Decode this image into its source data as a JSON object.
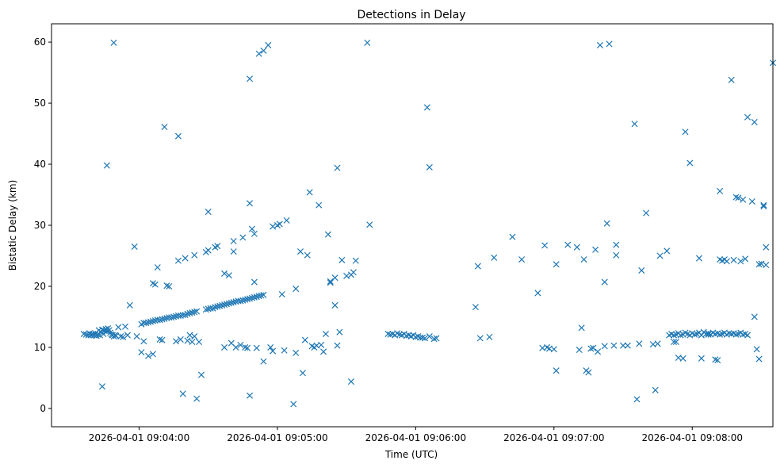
{
  "chart_data": {
    "type": "scatter",
    "title": "Detections in Delay",
    "xlabel": "Time (UTC)",
    "ylabel": "Bistatic Delay (km)",
    "marker": "x",
    "color": "#1f77b4",
    "x_unit": "seconds since 2026-04-01 09:03:00",
    "xlim": [
      22,
      335
    ],
    "ylim": [
      -3,
      63
    ],
    "xticks": [
      {
        "value": 60,
        "label": "2026-04-01 09:04:00"
      },
      {
        "value": 120,
        "label": "2026-04-01 09:05:00"
      },
      {
        "value": 180,
        "label": "2026-04-01 09:06:00"
      },
      {
        "value": 240,
        "label": "2026-04-01 09:07:00"
      },
      {
        "value": 300,
        "label": "2026-04-01 09:08:00"
      }
    ],
    "yticks": [
      0,
      10,
      20,
      30,
      40,
      50,
      60
    ],
    "grid": false,
    "series": [
      {
        "name": "detections",
        "points": [
          [
            36,
            12.2
          ],
          [
            37,
            12.1
          ],
          [
            38,
            12.0
          ],
          [
            38.5,
            12.3
          ],
          [
            39,
            12.0
          ],
          [
            39.5,
            12.1
          ],
          [
            40,
            12.2
          ],
          [
            40.5,
            12.0
          ],
          [
            41,
            12.3
          ],
          [
            41.5,
            11.9
          ],
          [
            42,
            12.1
          ],
          [
            42.5,
            12.8
          ],
          [
            43,
            12.0
          ],
          [
            43.5,
            12.5
          ],
          [
            44,
            12.9
          ],
          [
            44.5,
            12.2
          ],
          [
            45,
            12.7
          ],
          [
            45.5,
            13.0
          ],
          [
            46,
            12.6
          ],
          [
            46.5,
            13.1
          ],
          [
            47,
            12.8
          ],
          [
            47.5,
            12.4
          ],
          [
            48,
            12.1
          ],
          [
            48.5,
            12.0
          ],
          [
            49,
            11.8
          ],
          [
            49.5,
            12.0
          ],
          [
            50,
            11.9
          ],
          [
            51,
            13.3
          ],
          [
            52,
            11.8
          ],
          [
            53,
            11.7
          ],
          [
            54,
            13.4
          ],
          [
            55,
            12.0
          ],
          [
            61,
            13.8
          ],
          [
            62,
            14.0
          ],
          [
            63,
            14.0
          ],
          [
            64,
            14.1
          ],
          [
            65,
            14.2
          ],
          [
            66,
            14.3
          ],
          [
            67,
            14.4
          ],
          [
            68,
            14.5
          ],
          [
            69,
            14.5
          ],
          [
            70,
            14.6
          ],
          [
            71,
            14.7
          ],
          [
            72,
            14.8
          ],
          [
            73,
            14.9
          ],
          [
            74,
            14.9
          ],
          [
            75,
            15.0
          ],
          [
            76,
            15.1
          ],
          [
            77,
            15.2
          ],
          [
            78,
            15.2
          ],
          [
            79,
            15.3
          ],
          [
            80,
            15.3
          ],
          [
            81,
            15.5
          ],
          [
            82,
            15.6
          ],
          [
            83,
            15.7
          ],
          [
            84,
            15.8
          ],
          [
            85,
            15.9
          ],
          [
            89,
            16.2
          ],
          [
            90,
            16.3
          ],
          [
            91,
            16.4
          ],
          [
            92,
            16.4
          ],
          [
            93,
            16.6
          ],
          [
            94,
            16.7
          ],
          [
            95,
            16.8
          ],
          [
            96,
            16.9
          ],
          [
            97,
            17.0
          ],
          [
            98,
            17.1
          ],
          [
            99,
            17.2
          ],
          [
            100,
            17.3
          ],
          [
            101,
            17.4
          ],
          [
            102,
            17.5
          ],
          [
            103,
            17.6
          ],
          [
            104,
            17.6
          ],
          [
            105,
            17.7
          ],
          [
            106,
            17.8
          ],
          [
            107,
            17.9
          ],
          [
            108,
            18.0
          ],
          [
            109,
            18.1
          ],
          [
            110,
            18.2
          ],
          [
            111,
            18.3
          ],
          [
            112,
            18.4
          ],
          [
            113,
            18.5
          ],
          [
            114,
            18.6
          ],
          [
            168,
            12.2
          ],
          [
            169,
            12.1
          ],
          [
            170,
            12.2
          ],
          [
            171,
            12.0
          ],
          [
            172,
            12.3
          ],
          [
            173,
            12.1
          ],
          [
            174,
            12.0
          ],
          [
            175,
            12.2
          ],
          [
            176,
            11.9
          ],
          [
            177,
            12.0
          ],
          [
            178,
            11.8
          ],
          [
            179,
            12.0
          ],
          [
            180,
            11.7
          ],
          [
            181,
            11.8
          ],
          [
            182,
            11.6
          ],
          [
            183,
            11.6
          ],
          [
            184,
            11.5
          ],
          [
            186,
            11.8
          ],
          [
            188,
            11.4
          ],
          [
            189,
            11.5
          ],
          [
            290,
            12.0
          ],
          [
            291,
            12.2
          ],
          [
            292,
            12.0
          ],
          [
            293,
            12.1
          ],
          [
            294,
            12.3
          ],
          [
            295,
            12.0
          ],
          [
            296,
            12.1
          ],
          [
            297,
            12.4
          ],
          [
            298,
            12.2
          ],
          [
            299,
            12.0
          ],
          [
            300,
            12.3
          ],
          [
            301,
            12.1
          ],
          [
            302,
            12.2
          ],
          [
            303,
            12.4
          ],
          [
            304,
            12.0
          ],
          [
            305,
            12.5
          ],
          [
            306,
            12.2
          ],
          [
            307,
            12.3
          ],
          [
            308,
            12.1
          ],
          [
            309,
            12.4
          ],
          [
            310,
            12.2
          ],
          [
            311,
            12.3
          ],
          [
            312,
            12.1
          ],
          [
            313,
            12.2
          ],
          [
            314,
            12.4
          ],
          [
            315,
            12.1
          ],
          [
            316,
            12.3
          ],
          [
            317,
            12.2
          ],
          [
            318,
            12.3
          ],
          [
            319,
            12.1
          ],
          [
            320,
            12.2
          ],
          [
            321,
            12.4
          ],
          [
            322,
            12.1
          ],
          [
            323,
            12.2
          ],
          [
            324,
            12.0
          ],
          [
            46,
            39.8
          ],
          [
            49,
            59.9
          ],
          [
            44,
            3.6
          ],
          [
            56,
            16.9
          ],
          [
            58,
            26.5
          ],
          [
            59,
            11.8
          ],
          [
            61,
            9.2
          ],
          [
            62,
            11.0
          ],
          [
            64,
            8.6
          ],
          [
            66,
            8.9
          ],
          [
            66,
            20.5
          ],
          [
            67,
            20.3
          ],
          [
            68,
            23.1
          ],
          [
            69,
            11.3
          ],
          [
            70,
            11.2
          ],
          [
            71,
            46.1
          ],
          [
            72,
            20.1
          ],
          [
            73,
            20.0
          ],
          [
            76,
            11.0
          ],
          [
            77,
            44.6
          ],
          [
            77,
            24.2
          ],
          [
            78,
            11.3
          ],
          [
            79,
            2.4
          ],
          [
            80,
            24.6
          ],
          [
            81,
            11.1
          ],
          [
            82,
            12.0
          ],
          [
            83,
            10.9
          ],
          [
            84,
            11.8
          ],
          [
            84,
            25.1
          ],
          [
            85,
            1.6
          ],
          [
            86,
            10.9
          ],
          [
            87,
            5.5
          ],
          [
            89,
            25.6
          ],
          [
            90,
            25.9
          ],
          [
            90,
            32.2
          ],
          [
            93,
            26.4
          ],
          [
            94,
            26.6
          ],
          [
            97,
            10.0
          ],
          [
            97,
            22.1
          ],
          [
            99,
            21.8
          ],
          [
            100,
            10.7
          ],
          [
            101,
            27.4
          ],
          [
            101,
            25.7
          ],
          [
            102,
            10.0
          ],
          [
            104,
            10.4
          ],
          [
            105,
            28.0
          ],
          [
            106,
            10.0
          ],
          [
            107,
            9.9
          ],
          [
            108,
            33.6
          ],
          [
            108,
            54.0
          ],
          [
            108,
            2.1
          ],
          [
            109,
            29.4
          ],
          [
            110,
            28.6
          ],
          [
            110,
            20.7
          ],
          [
            111,
            9.9
          ],
          [
            112,
            58.1
          ],
          [
            114,
            58.6
          ],
          [
            114,
            7.7
          ],
          [
            116,
            59.5
          ],
          [
            117,
            10.0
          ],
          [
            118,
            29.8
          ],
          [
            118,
            9.4
          ],
          [
            120,
            30.0
          ],
          [
            121,
            30.2
          ],
          [
            122,
            18.7
          ],
          [
            123,
            9.5
          ],
          [
            124,
            30.8
          ],
          [
            127,
            0.7
          ],
          [
            128,
            19.6
          ],
          [
            128,
            9.1
          ],
          [
            130,
            25.7
          ],
          [
            131,
            5.8
          ],
          [
            132,
            11.2
          ],
          [
            133,
            25.1
          ],
          [
            134,
            35.4
          ],
          [
            135,
            10.2
          ],
          [
            136,
            10.0
          ],
          [
            137,
            10.3
          ],
          [
            138,
            33.3
          ],
          [
            139,
            10.4
          ],
          [
            140,
            9.3
          ],
          [
            141,
            12.2
          ],
          [
            142,
            28.5
          ],
          [
            143,
            20.6
          ],
          [
            143,
            20.8
          ],
          [
            145,
            16.9
          ],
          [
            145,
            21.4
          ],
          [
            146,
            10.3
          ],
          [
            146,
            39.4
          ],
          [
            147,
            12.5
          ],
          [
            148,
            24.3
          ],
          [
            150,
            21.7
          ],
          [
            152,
            21.9
          ],
          [
            152,
            4.4
          ],
          [
            153,
            22.3
          ],
          [
            154,
            24.2
          ],
          [
            159,
            59.9
          ],
          [
            160,
            30.1
          ],
          [
            185,
            49.3
          ],
          [
            186,
            39.5
          ],
          [
            206,
            16.6
          ],
          [
            207,
            23.3
          ],
          [
            208,
            11.5
          ],
          [
            212,
            11.7
          ],
          [
            214,
            24.7
          ],
          [
            222,
            28.1
          ],
          [
            226,
            24.4
          ],
          [
            233,
            18.9
          ],
          [
            235,
            9.9
          ],
          [
            236,
            26.7
          ],
          [
            237,
            10.0
          ],
          [
            238,
            9.8
          ],
          [
            240,
            9.7
          ],
          [
            241,
            23.6
          ],
          [
            241,
            6.2
          ],
          [
            246,
            26.8
          ],
          [
            250,
            26.4
          ],
          [
            251,
            9.6
          ],
          [
            252,
            13.2
          ],
          [
            253,
            24.4
          ],
          [
            254,
            6.2
          ],
          [
            255,
            5.9
          ],
          [
            256,
            9.8
          ],
          [
            257,
            9.9
          ],
          [
            258,
            26.0
          ],
          [
            259,
            9.3
          ],
          [
            260,
            59.5
          ],
          [
            262,
            20.7
          ],
          [
            262,
            10.2
          ],
          [
            263,
            30.3
          ],
          [
            264,
            59.7
          ],
          [
            266,
            10.3
          ],
          [
            267,
            26.8
          ],
          [
            267,
            25.1
          ],
          [
            270,
            10.3
          ],
          [
            272,
            10.3
          ],
          [
            275,
            46.6
          ],
          [
            276,
            1.5
          ],
          [
            277,
            10.6
          ],
          [
            278,
            22.6
          ],
          [
            280,
            32.0
          ],
          [
            283,
            10.5
          ],
          [
            284,
            3.0
          ],
          [
            285,
            10.6
          ],
          [
            286,
            25.0
          ],
          [
            289,
            25.8
          ],
          [
            292,
            10.9
          ],
          [
            293,
            10.9
          ],
          [
            294,
            8.3
          ],
          [
            296,
            8.2
          ],
          [
            297,
            45.3
          ],
          [
            299,
            40.2
          ],
          [
            303,
            24.6
          ],
          [
            304,
            8.2
          ],
          [
            307,
            12.1
          ],
          [
            310,
            8.0
          ],
          [
            311,
            7.9
          ],
          [
            312,
            35.6
          ],
          [
            312,
            24.4
          ],
          [
            313,
            24.2
          ],
          [
            314,
            24.4
          ],
          [
            315,
            24.1
          ],
          [
            317,
            53.8
          ],
          [
            318,
            24.3
          ],
          [
            319,
            34.6
          ],
          [
            320,
            34.5
          ],
          [
            321,
            24.1
          ],
          [
            322,
            34.2
          ],
          [
            323,
            24.5
          ],
          [
            324,
            47.7
          ],
          [
            326,
            33.9
          ],
          [
            327,
            15.0
          ],
          [
            327,
            46.9
          ],
          [
            328,
            9.7
          ],
          [
            329,
            8.1
          ],
          [
            329,
            23.6
          ],
          [
            330,
            23.7
          ],
          [
            331,
            33.3
          ],
          [
            331,
            33.1
          ],
          [
            332,
            23.5
          ],
          [
            332,
            26.4
          ],
          [
            335,
            56.6
          ]
        ]
      }
    ]
  }
}
